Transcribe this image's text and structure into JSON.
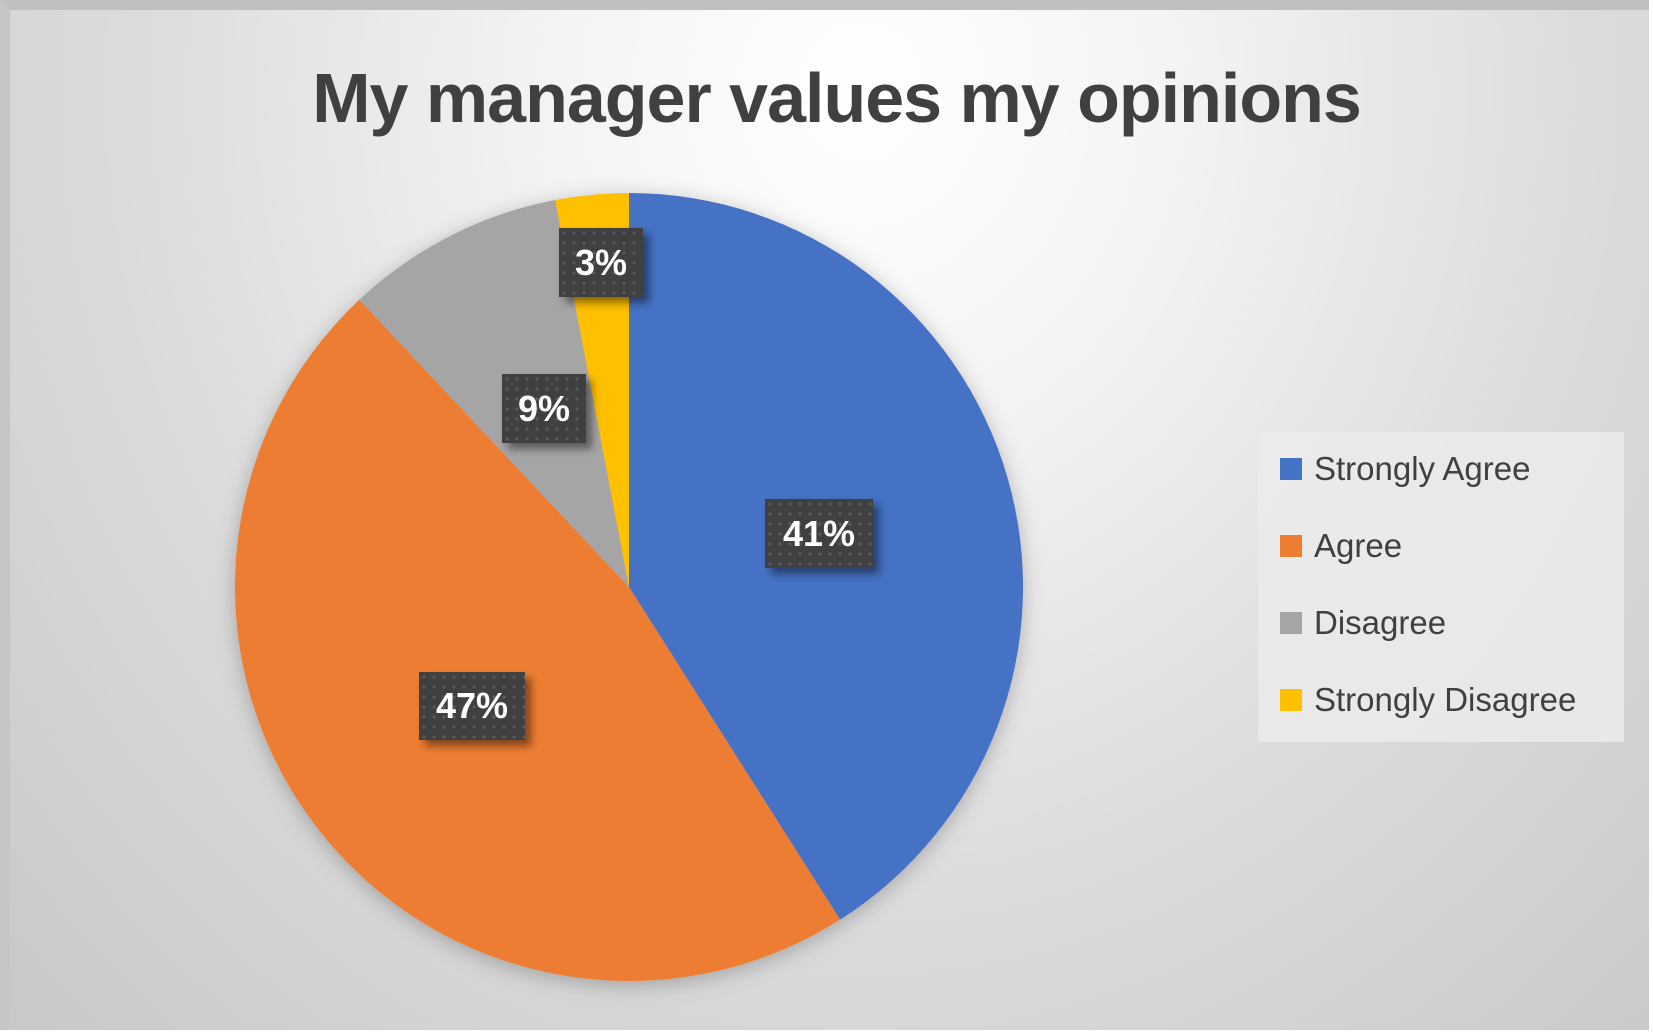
{
  "chart_data": {
    "type": "pie",
    "title": "My manager values my opinions",
    "categories": [
      "Strongly Agree",
      "Agree",
      "Disagree",
      "Strongly Disagree"
    ],
    "values": [
      41,
      47,
      9,
      3
    ],
    "labels": [
      "41%",
      "47%",
      "9%",
      "3%"
    ],
    "colors": [
      "#4472C4",
      "#ED7D31",
      "#A5A5A5",
      "#FFC000"
    ],
    "legend_position": "right",
    "start_angle": "12 o'clock, clockwise"
  },
  "legend": {
    "items": [
      {
        "label": "Strongly Agree",
        "color": "#4472C4"
      },
      {
        "label": "Agree",
        "color": "#ED7D31"
      },
      {
        "label": "Disagree",
        "color": "#A5A5A5"
      },
      {
        "label": "Strongly Disagree",
        "color": "#FFC000"
      }
    ]
  }
}
